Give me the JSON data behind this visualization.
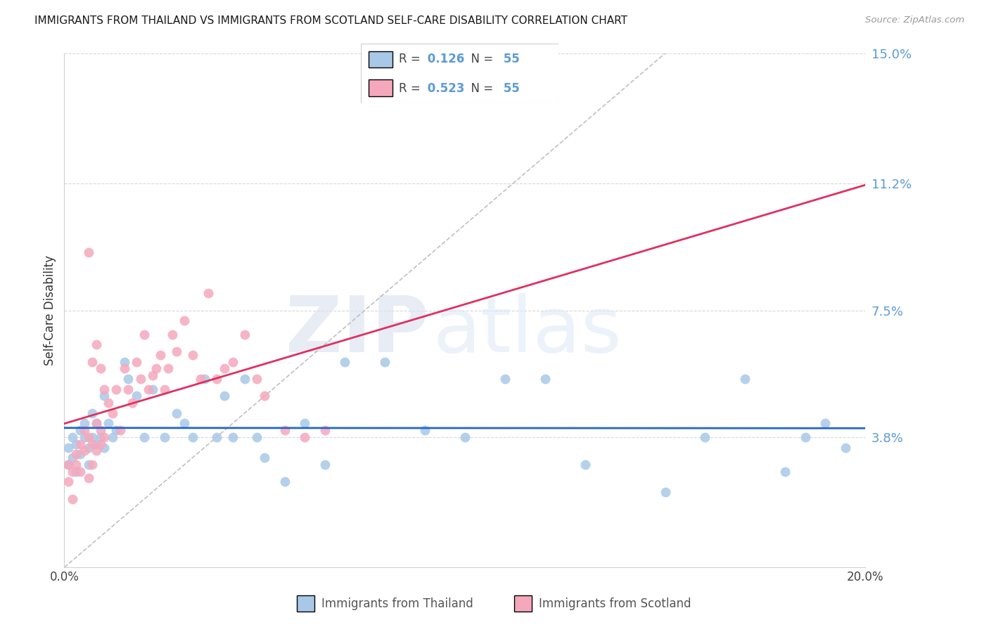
{
  "title": "IMMIGRANTS FROM THAILAND VS IMMIGRANTS FROM SCOTLAND SELF-CARE DISABILITY CORRELATION CHART",
  "source": "Source: ZipAtlas.com",
  "ylabel": "Self-Care Disability",
  "xlim": [
    0.0,
    0.2
  ],
  "ylim": [
    0.0,
    0.15
  ],
  "ytick_vals_right": [
    0.038,
    0.075,
    0.112,
    0.15
  ],
  "ytick_labels_right": [
    "3.8%",
    "7.5%",
    "11.2%",
    "15.0%"
  ],
  "thailand_color": "#a8c8e8",
  "scotland_color": "#f5a8bc",
  "trend_thailand_color": "#2266cc",
  "trend_scotland_color": "#e03060",
  "R_thailand": 0.126,
  "R_scotland": 0.523,
  "N": 55,
  "legend_label_thailand": "Immigrants from Thailand",
  "legend_label_scotland": "Immigrants from Scotland",
  "thailand_x": [
    0.001,
    0.001,
    0.002,
    0.002,
    0.003,
    0.003,
    0.004,
    0.004,
    0.005,
    0.005,
    0.006,
    0.006,
    0.007,
    0.007,
    0.008,
    0.008,
    0.009,
    0.01,
    0.01,
    0.011,
    0.012,
    0.013,
    0.015,
    0.016,
    0.018,
    0.02,
    0.022,
    0.025,
    0.028,
    0.03,
    0.032,
    0.035,
    0.038,
    0.04,
    0.042,
    0.045,
    0.048,
    0.05,
    0.055,
    0.06,
    0.065,
    0.07,
    0.08,
    0.09,
    0.1,
    0.11,
    0.12,
    0.13,
    0.15,
    0.16,
    0.17,
    0.18,
    0.185,
    0.19,
    0.195
  ],
  "thailand_y": [
    0.035,
    0.03,
    0.038,
    0.032,
    0.036,
    0.028,
    0.04,
    0.033,
    0.038,
    0.042,
    0.035,
    0.03,
    0.045,
    0.038,
    0.036,
    0.042,
    0.038,
    0.05,
    0.035,
    0.042,
    0.038,
    0.04,
    0.06,
    0.055,
    0.05,
    0.038,
    0.052,
    0.038,
    0.045,
    0.042,
    0.038,
    0.055,
    0.038,
    0.05,
    0.038,
    0.055,
    0.038,
    0.032,
    0.025,
    0.042,
    0.03,
    0.06,
    0.06,
    0.04,
    0.038,
    0.055,
    0.055,
    0.03,
    0.022,
    0.038,
    0.055,
    0.028,
    0.038,
    0.042,
    0.035
  ],
  "scotland_x": [
    0.001,
    0.001,
    0.002,
    0.002,
    0.003,
    0.003,
    0.004,
    0.004,
    0.005,
    0.005,
    0.006,
    0.006,
    0.007,
    0.007,
    0.008,
    0.008,
    0.009,
    0.009,
    0.01,
    0.01,
    0.011,
    0.012,
    0.013,
    0.014,
    0.015,
    0.016,
    0.017,
    0.018,
    0.019,
    0.02,
    0.021,
    0.022,
    0.023,
    0.024,
    0.025,
    0.026,
    0.027,
    0.028,
    0.03,
    0.032,
    0.034,
    0.036,
    0.038,
    0.04,
    0.042,
    0.045,
    0.048,
    0.05,
    0.055,
    0.06,
    0.065,
    0.006,
    0.007,
    0.008,
    0.009
  ],
  "scotland_y": [
    0.025,
    0.03,
    0.028,
    0.02,
    0.033,
    0.03,
    0.036,
    0.028,
    0.04,
    0.034,
    0.038,
    0.026,
    0.036,
    0.03,
    0.042,
    0.034,
    0.04,
    0.036,
    0.052,
    0.038,
    0.048,
    0.045,
    0.052,
    0.04,
    0.058,
    0.052,
    0.048,
    0.06,
    0.055,
    0.068,
    0.052,
    0.056,
    0.058,
    0.062,
    0.052,
    0.058,
    0.068,
    0.063,
    0.072,
    0.062,
    0.055,
    0.08,
    0.055,
    0.058,
    0.06,
    0.068,
    0.055,
    0.05,
    0.04,
    0.038,
    0.04,
    0.092,
    0.06,
    0.065,
    0.058
  ]
}
